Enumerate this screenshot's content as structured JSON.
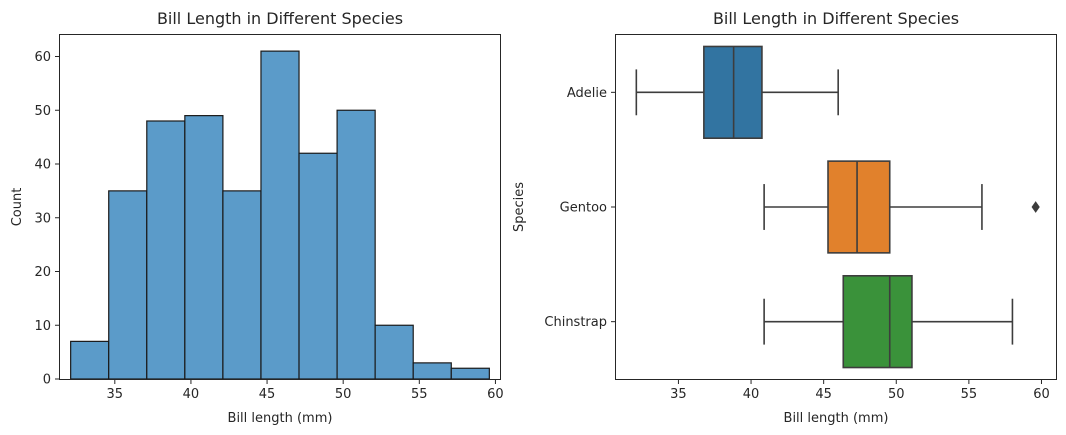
{
  "chart_data": [
    {
      "type": "bar",
      "subtype": "histogram",
      "title": "Bill Length in Different Species",
      "xlabel": "Bill length (mm)",
      "ylabel": "Count",
      "bin_edges": [
        32.1,
        34.6,
        37.1,
        39.6,
        42.1,
        44.6,
        47.1,
        49.6,
        52.1,
        54.6,
        57.1,
        59.6
      ],
      "values": [
        7,
        35,
        48,
        49,
        35,
        61,
        42,
        50,
        10,
        3,
        2
      ],
      "xlim": [
        31.4,
        60.3
      ],
      "ylim": [
        0,
        64
      ],
      "xticks": [
        35,
        40,
        45,
        50,
        55,
        60
      ],
      "yticks": [
        0,
        10,
        20,
        30,
        40,
        50,
        60
      ],
      "bar_color": "#5b9bc9",
      "edge_color": "#1a1a1a",
      "grid": false
    },
    {
      "type": "boxplot",
      "orientation": "horizontal",
      "title": "Bill Length in Different Species",
      "xlabel": "Bill length (mm)",
      "ylabel": "Species",
      "categories": [
        "Adelie",
        "Gentoo",
        "Chinstrap"
      ],
      "boxes": [
        {
          "category": "Adelie",
          "whisker_low": 32.1,
          "q1": 36.75,
          "median": 38.8,
          "q3": 40.75,
          "whisker_high": 46.0,
          "outliers": [],
          "color": "#3274a1"
        },
        {
          "category": "Gentoo",
          "whisker_low": 40.9,
          "q1": 45.3,
          "median": 47.3,
          "q3": 49.55,
          "whisker_high": 55.9,
          "outliers": [
            59.6
          ],
          "color": "#e1812c"
        },
        {
          "category": "Chinstrap",
          "whisker_low": 40.9,
          "q1": 46.35,
          "median": 49.55,
          "q3": 51.08,
          "whisker_high": 58.0,
          "outliers": [],
          "color": "#3a923a"
        }
      ],
      "xlim": [
        30.7,
        61.0
      ],
      "xticks": [
        35,
        40,
        45,
        50,
        55,
        60
      ],
      "grid": false
    }
  ]
}
